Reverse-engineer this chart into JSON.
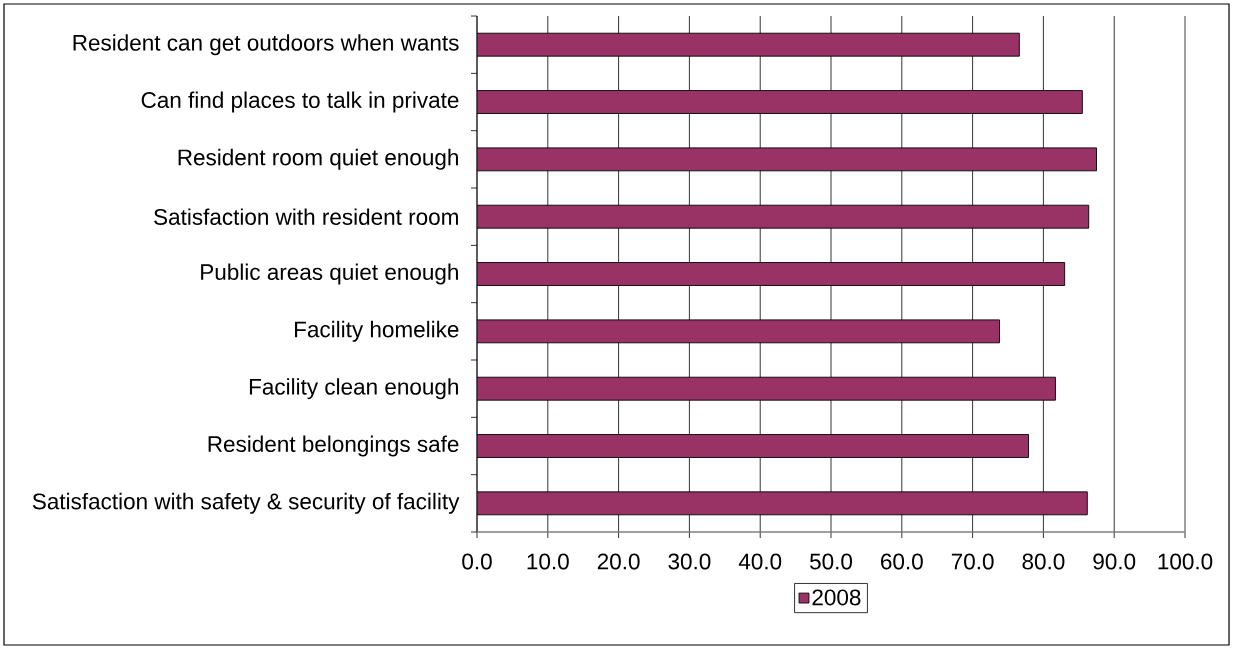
{
  "chart_data": {
    "type": "bar",
    "orientation": "horizontal",
    "categories": [
      "Resident can get outdoors when wants",
      "Can find places to talk in private",
      "Resident room quiet enough",
      "Satisfaction with resident room",
      "Public areas quiet enough",
      "Facility homelike",
      "Facility clean enough",
      "Resident belongings safe",
      "Satisfaction with safety & security of facility"
    ],
    "series": [
      {
        "name": "2008",
        "color": "#993366",
        "values": [
          76.6,
          85.5,
          87.5,
          86.4,
          83.0,
          73.8,
          81.7,
          77.9,
          86.2
        ]
      }
    ],
    "xlim": [
      0,
      100
    ],
    "xticks": [
      {
        "value": 0,
        "label": "0.0"
      },
      {
        "value": 10,
        "label": "10.0"
      },
      {
        "value": 20,
        "label": "20.0"
      },
      {
        "value": 30,
        "label": "30.0"
      },
      {
        "value": 40,
        "label": "40.0"
      },
      {
        "value": 50,
        "label": "50.0"
      },
      {
        "value": 60,
        "label": "60.0"
      },
      {
        "value": 70,
        "label": "70.0"
      },
      {
        "value": 80,
        "label": "80.0"
      },
      {
        "value": 90,
        "label": "90.0"
      },
      {
        "value": 100,
        "label": "100.0"
      }
    ],
    "grid": "x",
    "legend": "bottom"
  }
}
